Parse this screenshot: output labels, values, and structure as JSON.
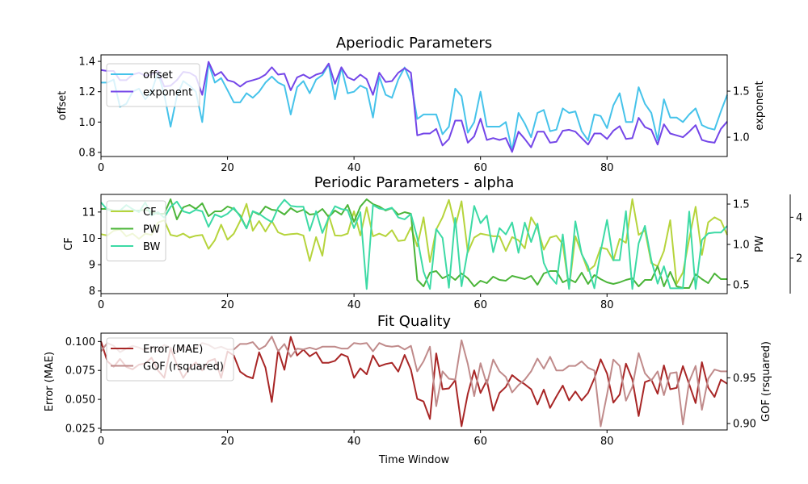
{
  "chart_data": [
    {
      "type": "line",
      "title": "Aperiodic Parameters",
      "xlabel": "",
      "xlim": [
        0,
        99
      ],
      "xticks": [
        0,
        20,
        40,
        60,
        80
      ],
      "axes": {
        "left": {
          "label": "offset",
          "ylim": [
            0.773,
            1.443
          ],
          "ticks": [
            0.8,
            1.0,
            1.2,
            1.4
          ],
          "tick_labels": [
            "0.8",
            "1.0",
            "1.2",
            "1.4"
          ]
        },
        "right": {
          "label": "exponent",
          "ylim": [
            0.79,
            1.895
          ],
          "ticks": [
            1.0,
            1.5
          ],
          "tick_labels": [
            "1.0",
            "1.5"
          ]
        }
      },
      "legend": "upper-left",
      "series": [
        {
          "name": "offset",
          "axis": "left",
          "color": "#46c3ea",
          "values": [
            1.26,
            1.26,
            1.28,
            1.1,
            1.12,
            1.2,
            1.22,
            1.15,
            1.2,
            1.33,
            1.18,
            0.97,
            1.17,
            1.27,
            1.24,
            1.2,
            1.0,
            1.39,
            1.26,
            1.29,
            1.21,
            1.13,
            1.13,
            1.19,
            1.16,
            1.2,
            1.26,
            1.3,
            1.26,
            1.24,
            1.05,
            1.23,
            1.27,
            1.19,
            1.28,
            1.31,
            1.38,
            1.15,
            1.36,
            1.19,
            1.2,
            1.24,
            1.22,
            1.03,
            1.3,
            1.18,
            1.16,
            1.28,
            1.36,
            1.26,
            1.02,
            1.05,
            1.05,
            1.05,
            0.92,
            0.97,
            1.22,
            1.17,
            0.93,
            1.0,
            1.2,
            0.97,
            0.97,
            0.97,
            1.0,
            0.81,
            1.06,
            0.99,
            0.9,
            1.06,
            1.08,
            0.94,
            0.95,
            1.09,
            1.06,
            1.07,
            0.94,
            0.88,
            1.05,
            1.04,
            0.96,
            1.11,
            1.19,
            1.0,
            1.0,
            1.23,
            1.12,
            1.06,
            0.88,
            1.15,
            1.03,
            1.03,
            1.0,
            1.05,
            1.09,
            0.98,
            0.96,
            0.95,
            1.07,
            1.18
          ]
        },
        {
          "name": "exponent",
          "axis": "right",
          "color": "#7446e8",
          "values": [
            1.73,
            1.72,
            1.72,
            1.62,
            1.62,
            1.68,
            1.7,
            1.67,
            1.68,
            1.72,
            1.55,
            1.56,
            1.62,
            1.71,
            1.7,
            1.66,
            1.46,
            1.82,
            1.67,
            1.71,
            1.62,
            1.6,
            1.55,
            1.6,
            1.62,
            1.64,
            1.68,
            1.76,
            1.68,
            1.69,
            1.51,
            1.65,
            1.68,
            1.64,
            1.68,
            1.7,
            1.8,
            1.58,
            1.76,
            1.65,
            1.62,
            1.68,
            1.63,
            1.46,
            1.7,
            1.6,
            1.61,
            1.7,
            1.75,
            1.7,
            1.02,
            1.04,
            1.04,
            1.09,
            0.91,
            0.98,
            1.18,
            1.18,
            0.94,
            1.01,
            1.2,
            0.97,
            0.99,
            0.97,
            0.99,
            0.84,
            1.06,
            0.98,
            0.89,
            1.06,
            1.06,
            0.94,
            0.95,
            1.07,
            1.08,
            1.06,
            0.99,
            0.92,
            1.04,
            1.04,
            0.98,
            1.07,
            1.12,
            0.98,
            0.99,
            1.21,
            1.11,
            1.08,
            0.92,
            1.14,
            1.04,
            1.02,
            1.0,
            1.06,
            1.13,
            0.97,
            0.95,
            0.94,
            1.09,
            1.17
          ]
        }
      ]
    },
    {
      "type": "line",
      "title": "Periodic Parameters - alpha",
      "xlabel": "",
      "xlim": [
        0,
        99
      ],
      "xticks": [
        0,
        20,
        40,
        60,
        80
      ],
      "axes": {
        "left": {
          "label": "CF",
          "ylim": [
            7.9,
            11.67
          ],
          "ticks": [
            8,
            9,
            10,
            11
          ],
          "tick_labels": [
            "8",
            "9",
            "10",
            "11"
          ]
        },
        "right": {
          "label": "PW",
          "ylim": [
            0.39,
            1.62
          ],
          "ticks": [
            0.5,
            1.0,
            1.5
          ],
          "tick_labels": [
            "0.5",
            "1.0",
            "1.5"
          ]
        },
        "right2": {
          "label": "",
          "ylim": [
            0.26,
            5.12
          ],
          "ticks": [
            2,
            4
          ],
          "tick_labels": [
            "2",
            "4"
          ]
        }
      },
      "legend": "upper-left",
      "series": [
        {
          "name": "CF",
          "axis": "left",
          "color": "#b6d43c",
          "values": [
            10.16,
            10.11,
            10.29,
            10.34,
            10.08,
            10.18,
            9.98,
            10.18,
            10.13,
            10.6,
            10.69,
            10.13,
            10.08,
            10.18,
            10.03,
            10.1,
            10.13,
            9.6,
            9.93,
            10.52,
            9.95,
            10.18,
            10.66,
            11.31,
            10.29,
            10.66,
            10.26,
            10.66,
            10.23,
            10.13,
            10.16,
            10.18,
            10.11,
            9.14,
            10.05,
            9.34,
            10.88,
            10.11,
            10.1,
            10.18,
            11.03,
            10.11,
            11.18,
            10.08,
            10.18,
            10.08,
            10.31,
            9.9,
            9.93,
            10.42,
            9.7,
            10.8,
            9.1,
            10.34,
            10.8,
            11.46,
            10.44,
            11.41,
            9.47,
            10.03,
            10.18,
            10.13,
            10.08,
            10.08,
            9.52,
            10.05,
            9.93,
            9.62,
            10.8,
            10.39,
            9.57,
            10.03,
            10.1,
            9.78,
            8.09,
            10.08,
            9.42,
            8.76,
            8.96,
            9.65,
            9.59,
            9.16,
            9.98,
            9.83,
            11.49,
            10.13,
            10.31,
            9.06,
            8.94,
            9.52,
            10.69,
            8.27,
            8.7,
            9.98,
            11.2,
            9.37,
            10.61,
            10.8,
            10.67,
            10.13
          ]
        },
        {
          "name": "PW",
          "axis": "right",
          "color": "#4bb539",
          "values": [
            1.44,
            1.44,
            1.42,
            1.42,
            1.42,
            1.42,
            1.42,
            1.43,
            1.4,
            1.38,
            1.38,
            1.56,
            1.31,
            1.46,
            1.49,
            1.44,
            1.51,
            1.35,
            1.41,
            1.41,
            1.47,
            1.44,
            1.36,
            1.2,
            1.41,
            1.37,
            1.47,
            1.43,
            1.42,
            1.37,
            1.45,
            1.4,
            1.43,
            1.37,
            1.38,
            1.44,
            1.34,
            1.42,
            1.37,
            1.49,
            1.28,
            1.47,
            1.56,
            1.5,
            1.47,
            1.42,
            1.45,
            1.37,
            1.4,
            1.38,
            0.56,
            0.48,
            0.65,
            0.67,
            0.58,
            0.62,
            0.56,
            0.64,
            0.58,
            0.48,
            0.55,
            0.52,
            0.6,
            0.56,
            0.55,
            0.61,
            0.59,
            0.57,
            0.61,
            0.5,
            0.64,
            0.67,
            0.67,
            0.53,
            0.57,
            0.53,
            0.65,
            0.51,
            0.62,
            0.57,
            0.53,
            0.51,
            0.53,
            0.56,
            0.58,
            0.48,
            0.56,
            0.56,
            0.73,
            0.48,
            0.66,
            0.48,
            0.46,
            0.46,
            0.63,
            0.57,
            0.52,
            0.64,
            0.57,
            0.57
          ]
        },
        {
          "name": "BW",
          "axis": "right2",
          "color": "#3ddaa5",
          "values": [
            4.73,
            4.37,
            4.3,
            4.33,
            4.6,
            4.4,
            4.25,
            4.73,
            4.08,
            4.25,
            3.98,
            4.51,
            4.77,
            4.29,
            4.2,
            4.37,
            4.29,
            3.53,
            4.14,
            4.01,
            4.17,
            4.47,
            4.04,
            3.45,
            4.3,
            4.17,
            3.95,
            3.76,
            4.47,
            4.86,
            4.56,
            4.52,
            4.52,
            3.34,
            4.3,
            3.23,
            3.98,
            4.54,
            4.4,
            4.35,
            3.47,
            4.25,
            0.49,
            4.6,
            4.43,
            4.37,
            4.47,
            3.99,
            3.9,
            4.16,
            3.0,
            1.34,
            0.49,
            3.42,
            2.99,
            0.55,
            3.97,
            0.62,
            2.39,
            4.56,
            3.71,
            4.08,
            2.29,
            3.47,
            3.16,
            3.75,
            2.26,
            3.74,
            2.79,
            3.69,
            1.76,
            1.1,
            0.74,
            3.16,
            0.49,
            3.8,
            2.2,
            1.6,
            0.52,
            2.33,
            3.87,
            1.9,
            1.9,
            4.3,
            0.49,
            2.72,
            3.58,
            1.9,
            0.75,
            1.6,
            0.52,
            0.52,
            0.52,
            4.28,
            0.49,
            2.89,
            3.21,
            3.25,
            3.25,
            3.58
          ]
        }
      ]
    },
    {
      "type": "line",
      "title": "Fit Quality",
      "xlabel": "Time Window",
      "xlim": [
        0,
        99
      ],
      "xticks": [
        0,
        20,
        40,
        60,
        80
      ],
      "axes": {
        "left": {
          "label": "Error (MAE)",
          "ylim": [
            0.0236,
            0.1072
          ],
          "ticks": [
            0.025,
            0.05,
            0.075,
            0.1
          ],
          "tick_labels": [
            "0.025",
            "0.050",
            "0.075",
            "0.100"
          ]
        },
        "right": {
          "label": "GOF (rsquared)",
          "ylim": [
            0.893,
            0.9988
          ],
          "ticks": [
            0.9,
            0.95
          ],
          "tick_labels": [
            "0.90",
            "0.95"
          ]
        }
      },
      "legend": "upper-left",
      "series": [
        {
          "name": "Error (MAE)",
          "axis": "left",
          "color": "#a82626",
          "values": [
            0.1,
            0.083,
            0.078,
            0.085,
            0.078,
            0.076,
            0.08,
            0.081,
            0.086,
            0.075,
            0.0686,
            0.094,
            0.08,
            0.0686,
            0.077,
            0.082,
            0.075,
            0.083,
            0.085,
            0.0686,
            0.0914,
            0.0879,
            0.074,
            0.0701,
            0.0682,
            0.0907,
            0.0775,
            0.0478,
            0.0926,
            0.0756,
            0.104,
            0.0879,
            0.093,
            0.0872,
            0.0907,
            0.0816,
            0.0816,
            0.0833,
            0.0891,
            0.0868,
            0.0686,
            0.0768,
            0.0717,
            0.0879,
            0.0786,
            0.0805,
            0.0816,
            0.074,
            0.0884,
            0.0756,
            0.0505,
            0.0482,
            0.0331,
            0.0897,
            0.0588,
            0.0595,
            0.0665,
            0.0268,
            0.0549,
            0.0751,
            0.0556,
            0.0665,
            0.0403,
            0.0556,
            0.0607,
            0.071,
            0.0665,
            0.063,
            0.0588,
            0.0456,
            0.0584,
            0.0426,
            0.0525,
            0.0619,
            0.0491,
            0.0568,
            0.0491,
            0.0556,
            0.0681,
            0.0846,
            0.0723,
            0.0472,
            0.0542,
            0.0809,
            0.0672,
            0.0356,
            0.0649,
            0.067,
            0.0549,
            0.0793,
            0.0588,
            0.06,
            0.0788,
            0.063,
            0.0468,
            0.0821,
            0.0602,
            0.0521,
            0.067,
            0.0635
          ]
        },
        {
          "name": "GOF (rsquared)",
          "axis": "right",
          "color": "#c08b8b",
          "values": [
            0.979,
            0.988,
            0.985,
            0.978,
            0.982,
            0.985,
            0.983,
            0.98,
            0.984,
            0.979,
            0.986,
            0.983,
            0.978,
            0.985,
            0.981,
            0.983,
            0.988,
            0.986,
            0.982,
            0.984,
            0.981,
            0.981,
            0.987,
            0.987,
            0.989,
            0.981,
            0.985,
            0.995,
            0.979,
            0.987,
            0.973,
            0.982,
            0.981,
            0.983,
            0.981,
            0.984,
            0.984,
            0.984,
            0.982,
            0.982,
            0.988,
            0.987,
            0.988,
            0.979,
            0.988,
            0.985,
            0.984,
            0.985,
            0.981,
            0.985,
            0.957,
            0.968,
            0.984,
            0.919,
            0.957,
            0.949,
            0.948,
            0.991,
            0.965,
            0.93,
            0.966,
            0.943,
            0.97,
            0.957,
            0.951,
            0.934,
            0.942,
            0.948,
            0.957,
            0.971,
            0.96,
            0.973,
            0.958,
            0.958,
            0.963,
            0.963,
            0.968,
            0.961,
            0.958,
            0.897,
            0.932,
            0.97,
            0.963,
            0.925,
            0.94,
            0.977,
            0.955,
            0.947,
            0.957,
            0.931,
            0.955,
            0.956,
            0.899,
            0.946,
            0.963,
            0.915,
            0.949,
            0.959,
            0.957,
            0.957
          ]
        }
      ]
    }
  ]
}
